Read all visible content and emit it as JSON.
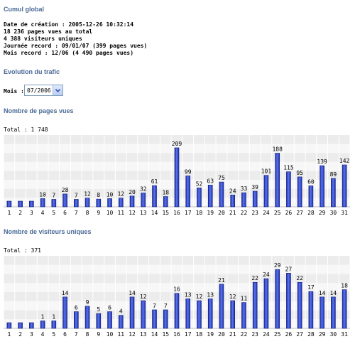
{
  "cumul": {
    "title": "Cumul global",
    "lines": [
      "Date de création : 2005-12-26 10:32:14",
      "18 236 pages vues au total",
      "4 388 visiteurs uniques",
      "Journée record : 09/01/07 (399 pages vues)",
      "Mois record : 12/06 (4 490 pages vues)"
    ]
  },
  "evolution": {
    "title": "Evolution du trafic",
    "month_label": "Mois :",
    "month_value": "07/2006"
  },
  "pages_chart": {
    "title": "Nombre de pages vues",
    "total_label": "Total : 1 748"
  },
  "visitors_chart": {
    "title": "Nombre de visiteurs uniques",
    "total_label": "Total : 371"
  },
  "colors": {
    "accent": "#4a6a96",
    "bar": "#3a4fd0",
    "grid": "#e9e9e9"
  },
  "icons": {
    "dropdown": "chevron-down-icon"
  },
  "chart_data": [
    {
      "type": "bar",
      "title": "Nombre de pages vues",
      "categories": [
        "1",
        "2",
        "3",
        "4",
        "5",
        "6",
        "7",
        "8",
        "9",
        "10",
        "11",
        "12",
        "13",
        "14",
        "15",
        "16",
        "17",
        "18",
        "19",
        "20",
        "21",
        "22",
        "23",
        "24",
        "25",
        "26",
        "27",
        "28",
        "29",
        "30",
        "31"
      ],
      "values": [
        0,
        0,
        0,
        10,
        7,
        28,
        7,
        12,
        8,
        10,
        12,
        20,
        32,
        61,
        18,
        209,
        99,
        52,
        63,
        75,
        24,
        33,
        39,
        101,
        188,
        115,
        95,
        60,
        139,
        89,
        142
      ],
      "labels": [
        "",
        "",
        "",
        "10",
        "7",
        "28",
        "7",
        "12",
        "8",
        "10",
        "12",
        "20",
        "32",
        "61",
        "18",
        "209",
        "99",
        "52",
        "63",
        "75",
        "24",
        "33",
        "39",
        "101",
        "188",
        "115",
        "95",
        "60",
        "139",
        "89",
        "142"
      ],
      "ylim": [
        0,
        220
      ],
      "grid": true
    },
    {
      "type": "bar",
      "title": "Nombre de visiteurs uniques",
      "categories": [
        "1",
        "2",
        "3",
        "4",
        "5",
        "6",
        "7",
        "8",
        "9",
        "10",
        "11",
        "12",
        "13",
        "14",
        "15",
        "16",
        "17",
        "18",
        "19",
        "20",
        "21",
        "22",
        "23",
        "24",
        "25",
        "26",
        "27",
        "28",
        "29",
        "30",
        "31"
      ],
      "values": [
        0,
        0,
        0,
        1,
        1,
        14,
        6,
        9,
        5,
        6,
        4,
        14,
        12,
        7,
        7,
        16,
        13,
        12,
        13,
        21,
        12,
        11,
        22,
        24,
        29,
        27,
        22,
        17,
        14,
        14,
        18
      ],
      "labels": [
        "",
        "",
        "",
        "1",
        "1",
        "14",
        "6",
        "9",
        "5",
        "6",
        "4",
        "14",
        "12",
        "7",
        "7",
        "16",
        "13",
        "12",
        "13",
        "21",
        "12",
        "11",
        "22",
        "24",
        "29",
        "27",
        "22",
        "17",
        "14",
        "14",
        "18"
      ],
      "ylim": [
        0,
        31
      ],
      "grid": true
    }
  ]
}
